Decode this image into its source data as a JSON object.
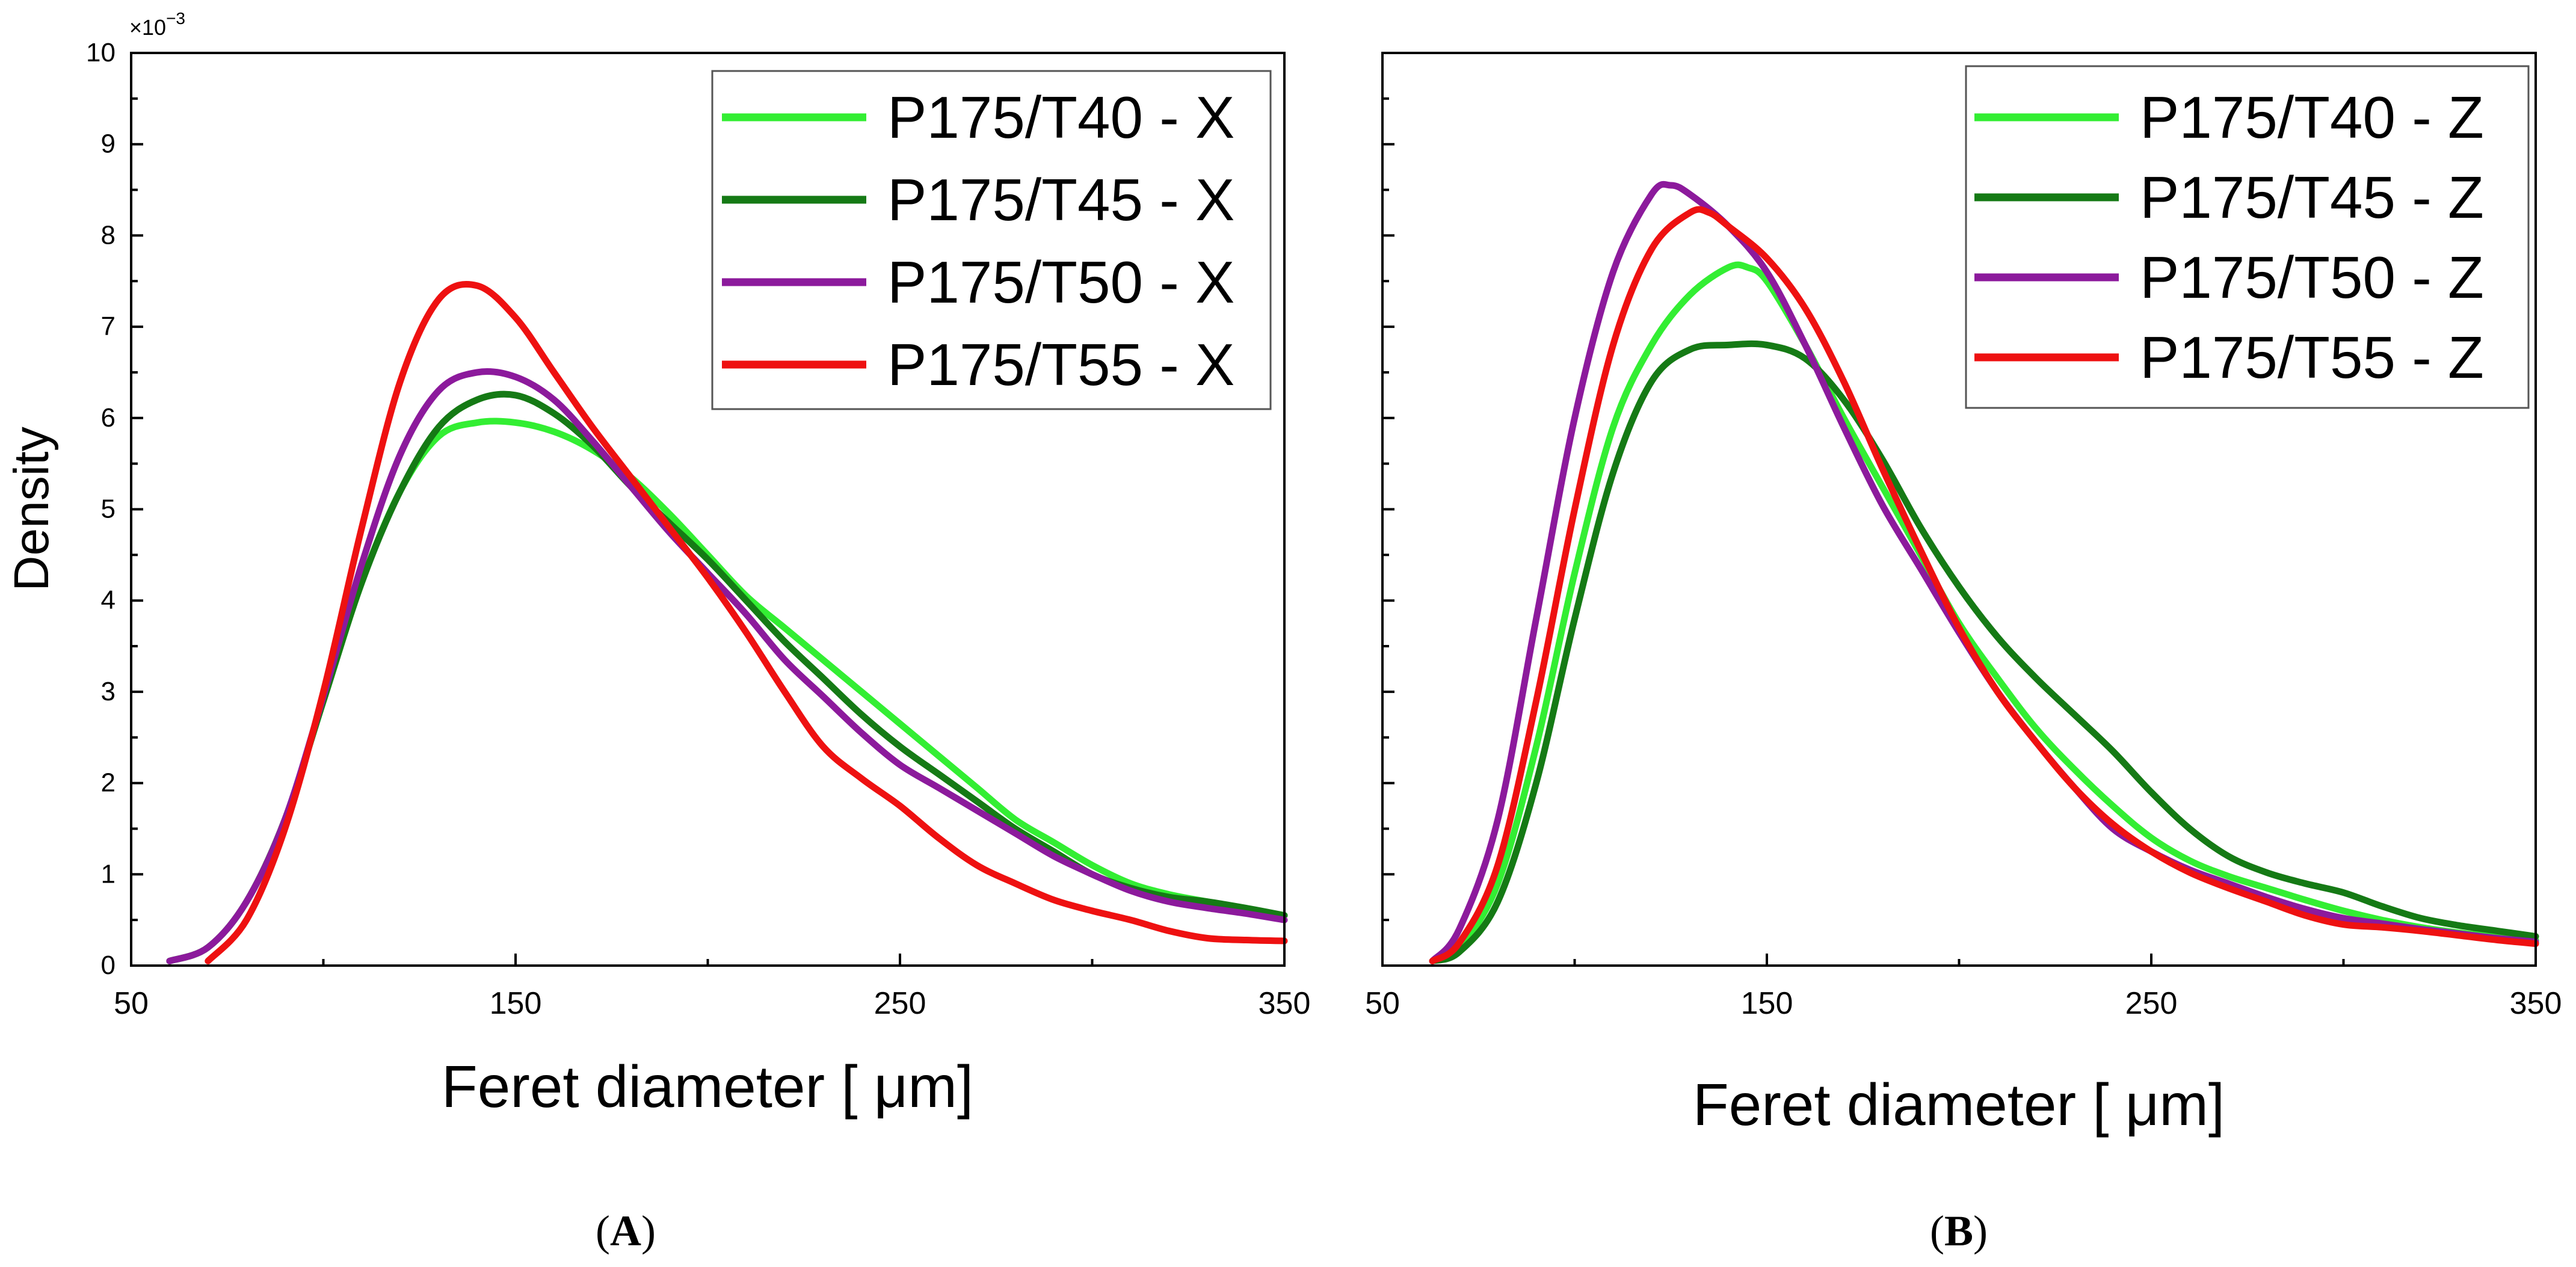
{
  "chart_data": [
    {
      "type": "line",
      "panel": "A",
      "panel_label": "A",
      "title": "",
      "xlabel": "Feret diameter [ μm]",
      "ylabel": "Density",
      "exponent_label": "×10",
      "exponent_power": "−3",
      "xlim": [
        50,
        350
      ],
      "ylim": [
        0,
        10
      ],
      "xticks": [
        50,
        150,
        250,
        350
      ],
      "yticks": [
        0,
        1,
        2,
        3,
        4,
        5,
        6,
        7,
        8,
        9,
        10
      ],
      "grid": false,
      "legend_position": "top-right",
      "series": [
        {
          "name": "P175/T40 - X",
          "color": "#33ee33",
          "x": [
            60,
            70,
            80,
            90,
            100,
            110,
            120,
            130,
            140,
            150,
            160,
            170,
            180,
            190,
            200,
            210,
            220,
            230,
            240,
            250,
            260,
            270,
            280,
            290,
            300,
            310,
            320,
            330,
            340,
            350
          ],
          "y": [
            0.05,
            0.2,
            0.7,
            1.6,
            2.9,
            4.2,
            5.2,
            5.8,
            5.95,
            5.95,
            5.85,
            5.65,
            5.35,
            4.95,
            4.5,
            4.05,
            3.7,
            3.35,
            3.0,
            2.65,
            2.3,
            1.95,
            1.6,
            1.35,
            1.1,
            0.9,
            0.78,
            0.7,
            0.62,
            0.55
          ]
        },
        {
          "name": "P175/T45 - X",
          "color": "#157a15",
          "x": [
            60,
            70,
            80,
            90,
            100,
            110,
            120,
            130,
            140,
            150,
            160,
            170,
            180,
            190,
            200,
            210,
            220,
            230,
            240,
            250,
            260,
            270,
            280,
            290,
            300,
            310,
            320,
            330,
            340,
            350
          ],
          "y": [
            0.05,
            0.2,
            0.7,
            1.6,
            2.9,
            4.2,
            5.2,
            5.9,
            6.2,
            6.25,
            6.05,
            5.7,
            5.25,
            4.85,
            4.45,
            4.0,
            3.55,
            3.15,
            2.75,
            2.4,
            2.1,
            1.8,
            1.5,
            1.25,
            1.0,
            0.85,
            0.75,
            0.7,
            0.63,
            0.55
          ]
        },
        {
          "name": "P175/T50 - X",
          "color": "#8c1a9c",
          "x": [
            60,
            70,
            80,
            90,
            100,
            110,
            120,
            130,
            140,
            150,
            160,
            170,
            180,
            190,
            200,
            210,
            220,
            230,
            240,
            250,
            260,
            270,
            280,
            290,
            300,
            310,
            320,
            330,
            340,
            350
          ],
          "y": [
            0.05,
            0.2,
            0.7,
            1.6,
            2.95,
            4.4,
            5.6,
            6.3,
            6.5,
            6.45,
            6.2,
            5.75,
            5.25,
            4.75,
            4.3,
            3.85,
            3.35,
            2.95,
            2.55,
            2.2,
            1.95,
            1.7,
            1.45,
            1.2,
            1.0,
            0.82,
            0.7,
            0.63,
            0.57,
            0.5
          ]
        },
        {
          "name": "P175/T55 - X",
          "color": "#ee1111",
          "x": [
            70,
            80,
            90,
            100,
            110,
            120,
            130,
            140,
            150,
            160,
            170,
            180,
            190,
            200,
            210,
            220,
            230,
            240,
            250,
            260,
            270,
            280,
            290,
            300,
            310,
            320,
            330,
            340,
            350
          ],
          "y": [
            0.05,
            0.5,
            1.5,
            3.0,
            4.8,
            6.4,
            7.3,
            7.45,
            7.1,
            6.5,
            5.9,
            5.35,
            4.8,
            4.25,
            3.65,
            3.0,
            2.4,
            2.05,
            1.75,
            1.4,
            1.1,
            0.9,
            0.72,
            0.6,
            0.5,
            0.38,
            0.3,
            0.28,
            0.27
          ]
        }
      ]
    },
    {
      "type": "line",
      "panel": "B",
      "panel_label": "B",
      "title": "",
      "xlabel": "Feret diameter [ μm]",
      "ylabel": "",
      "xlim": [
        50,
        350
      ],
      "ylim": [
        0,
        10
      ],
      "xticks": [
        50,
        150,
        250,
        350
      ],
      "yticks": [
        0,
        1,
        2,
        3,
        4,
        5,
        6,
        7,
        8,
        9,
        10
      ],
      "grid": false,
      "legend_position": "top-right",
      "series": [
        {
          "name": "P175/T40 - Z",
          "color": "#33ee33",
          "x": [
            63,
            70,
            80,
            90,
            100,
            110,
            120,
            130,
            140,
            145,
            150,
            160,
            170,
            180,
            190,
            200,
            210,
            220,
            230,
            240,
            250,
            260,
            270,
            280,
            290,
            300,
            310,
            320,
            330,
            340,
            350
          ],
          "y": [
            0.05,
            0.2,
            0.9,
            2.4,
            4.3,
            5.9,
            6.8,
            7.35,
            7.65,
            7.65,
            7.5,
            6.8,
            6.0,
            5.25,
            4.5,
            3.75,
            3.15,
            2.6,
            2.15,
            1.75,
            1.4,
            1.15,
            0.98,
            0.85,
            0.72,
            0.6,
            0.5,
            0.42,
            0.36,
            0.32,
            0.28
          ]
        },
        {
          "name": "P175/T45 - Z",
          "color": "#157a15",
          "x": [
            63,
            70,
            80,
            90,
            100,
            110,
            120,
            130,
            140,
            150,
            160,
            170,
            180,
            190,
            200,
            210,
            220,
            230,
            240,
            250,
            260,
            270,
            280,
            290,
            300,
            310,
            320,
            330,
            340,
            350
          ],
          "y": [
            0.05,
            0.15,
            0.7,
            2.0,
            3.8,
            5.4,
            6.4,
            6.75,
            6.8,
            6.8,
            6.65,
            6.2,
            5.55,
            4.8,
            4.15,
            3.6,
            3.15,
            2.75,
            2.35,
            1.9,
            1.5,
            1.2,
            1.02,
            0.9,
            0.8,
            0.65,
            0.52,
            0.44,
            0.38,
            0.32
          ]
        },
        {
          "name": "P175/T50 - Z",
          "color": "#8c1a9c",
          "x": [
            63,
            70,
            80,
            90,
            100,
            110,
            120,
            125,
            130,
            140,
            150,
            160,
            170,
            180,
            190,
            200,
            210,
            220,
            230,
            240,
            250,
            260,
            270,
            280,
            290,
            300,
            310,
            320,
            330,
            340,
            350
          ],
          "y": [
            0.05,
            0.4,
            1.6,
            3.8,
            6.0,
            7.6,
            8.45,
            8.55,
            8.45,
            8.1,
            7.6,
            6.8,
            5.9,
            5.05,
            4.35,
            3.65,
            3.0,
            2.45,
            1.95,
            1.5,
            1.25,
            1.05,
            0.9,
            0.75,
            0.62,
            0.52,
            0.46,
            0.4,
            0.35,
            0.3,
            0.26
          ]
        },
        {
          "name": "P175/T55 - Z",
          "color": "#ee1111",
          "x": [
            63,
            70,
            80,
            90,
            100,
            110,
            120,
            130,
            135,
            140,
            150,
            160,
            170,
            180,
            190,
            200,
            210,
            220,
            230,
            240,
            250,
            260,
            270,
            280,
            290,
            300,
            310,
            320,
            330,
            340,
            350
          ],
          "y": [
            0.05,
            0.25,
            1.1,
            2.9,
            5.0,
            6.8,
            7.85,
            8.25,
            8.25,
            8.1,
            7.75,
            7.2,
            6.4,
            5.45,
            4.55,
            3.7,
            3.0,
            2.45,
            1.95,
            1.55,
            1.25,
            1.02,
            0.85,
            0.7,
            0.55,
            0.45,
            0.42,
            0.38,
            0.33,
            0.28,
            0.24
          ]
        }
      ]
    }
  ]
}
